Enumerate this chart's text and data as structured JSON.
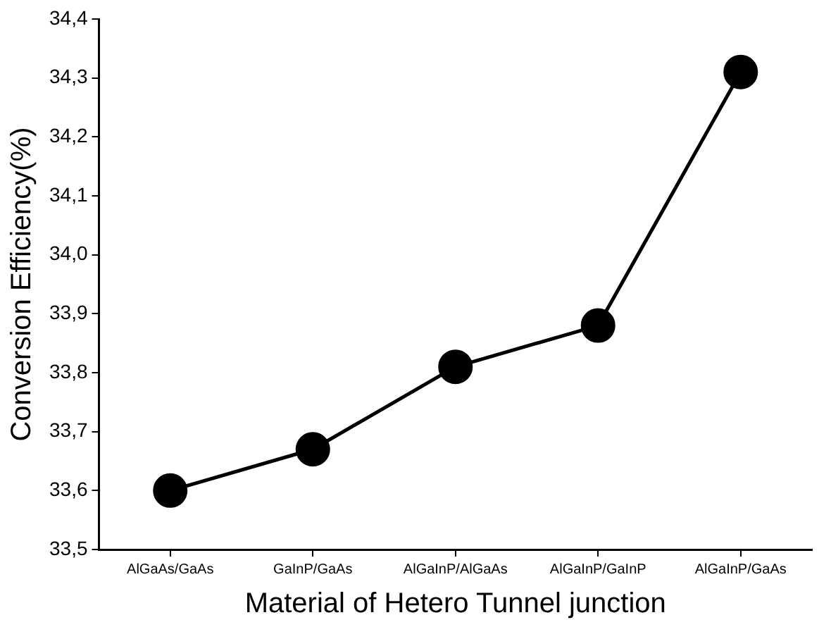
{
  "chart_data": {
    "type": "line",
    "xlabel": "Material of Hetero Tunnel junction",
    "ylabel": "Conversion Efficiency(%)",
    "categories": [
      "AlGaAs/GaAs",
      "GaInP/GaAs",
      "AlGaInP/AlGaAs",
      "AlGaInP/GaInP",
      "AlGaInP/GaAs"
    ],
    "values": [
      33.6,
      33.67,
      33.81,
      33.88,
      34.31
    ],
    "color": "#000000",
    "marker": "circle",
    "line_style": "solid",
    "ylim": [
      33.5,
      34.4
    ],
    "yticks": [
      {
        "value": 33.5,
        "label": "33,5"
      },
      {
        "value": 33.6,
        "label": "33,6"
      },
      {
        "value": 33.7,
        "label": "33,7"
      },
      {
        "value": 33.8,
        "label": "33,8"
      },
      {
        "value": 33.9,
        "label": "33,9"
      },
      {
        "value": 34.0,
        "label": "34,0"
      },
      {
        "value": 34.1,
        "label": "34,1"
      },
      {
        "value": 34.2,
        "label": "34,2"
      },
      {
        "value": 34.3,
        "label": "34,3"
      },
      {
        "value": 34.4,
        "label": "34,4"
      }
    ]
  }
}
